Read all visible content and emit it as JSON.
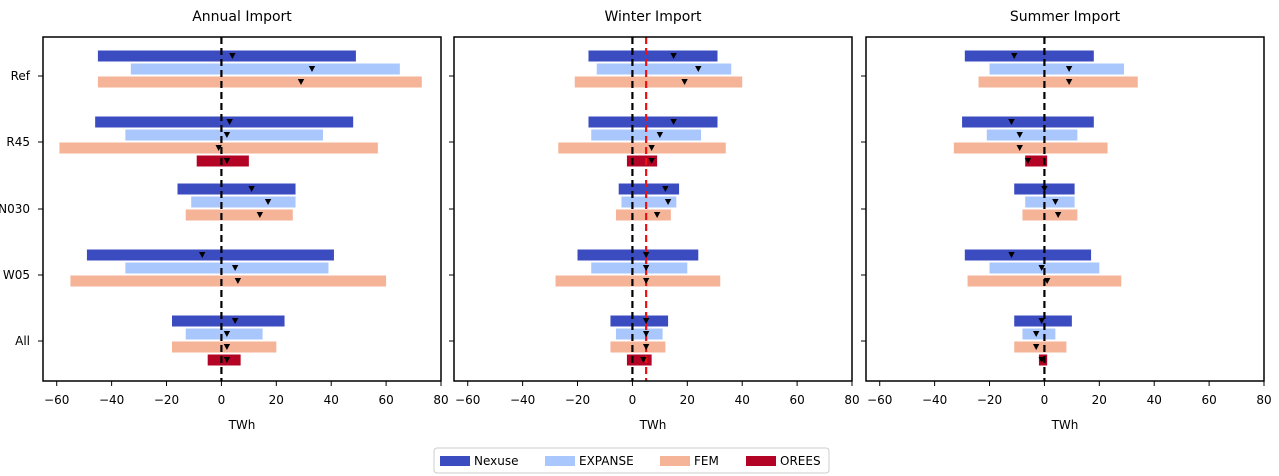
{
  "chart_data": {
    "type": "bar",
    "description": "Range bars (min-max) with median markers per scenario and model",
    "scenarios": [
      "Ref",
      "R45",
      "N030",
      "W05",
      "All"
    ],
    "models": [
      "Nexuse",
      "EXPANSE",
      "FEM",
      "OREES"
    ],
    "colors": {
      "Nexuse": "#3b4cc0",
      "EXPANSE": "#aac7fd",
      "FEM": "#f5b397",
      "OREES": "#b40426"
    },
    "xlabel": "TWh",
    "xlim": [
      -65,
      80
    ],
    "xticks": [
      -60,
      -40,
      -20,
      0,
      20,
      40,
      60,
      80
    ],
    "legend": [
      "Nexuse",
      "EXPANSE",
      "FEM",
      "OREES"
    ],
    "panels": [
      {
        "title": "Annual Import",
        "red_line": null,
        "series": [
          {
            "scenario": "Ref",
            "model": "Nexuse",
            "min": -45,
            "max": 49,
            "median": 4
          },
          {
            "scenario": "Ref",
            "model": "EXPANSE",
            "min": -33,
            "max": 65,
            "median": 33
          },
          {
            "scenario": "Ref",
            "model": "FEM",
            "min": -45,
            "max": 73,
            "median": 29
          },
          {
            "scenario": "R45",
            "model": "Nexuse",
            "min": -46,
            "max": 48,
            "median": 3
          },
          {
            "scenario": "R45",
            "model": "EXPANSE",
            "min": -35,
            "max": 37,
            "median": 2
          },
          {
            "scenario": "R45",
            "model": "FEM",
            "min": -59,
            "max": 57,
            "median": -1
          },
          {
            "scenario": "R45",
            "model": "OREES",
            "min": -9,
            "max": 10,
            "median": 2
          },
          {
            "scenario": "N030",
            "model": "Nexuse",
            "min": -16,
            "max": 27,
            "median": 11
          },
          {
            "scenario": "N030",
            "model": "EXPANSE",
            "min": -11,
            "max": 27,
            "median": 17
          },
          {
            "scenario": "N030",
            "model": "FEM",
            "min": -13,
            "max": 26,
            "median": 14
          },
          {
            "scenario": "W05",
            "model": "Nexuse",
            "min": -49,
            "max": 41,
            "median": -7
          },
          {
            "scenario": "W05",
            "model": "EXPANSE",
            "min": -35,
            "max": 39,
            "median": 5
          },
          {
            "scenario": "W05",
            "model": "FEM",
            "min": -55,
            "max": 60,
            "median": 6
          },
          {
            "scenario": "All",
            "model": "Nexuse",
            "min": -18,
            "max": 23,
            "median": 5
          },
          {
            "scenario": "All",
            "model": "EXPANSE",
            "min": -13,
            "max": 15,
            "median": 2
          },
          {
            "scenario": "All",
            "model": "FEM",
            "min": -18,
            "max": 20,
            "median": 2
          },
          {
            "scenario": "All",
            "model": "OREES",
            "min": -5,
            "max": 7,
            "median": 2
          }
        ]
      },
      {
        "title": "Winter Import",
        "red_line": 5,
        "series": [
          {
            "scenario": "Ref",
            "model": "Nexuse",
            "min": -16,
            "max": 31,
            "median": 15
          },
          {
            "scenario": "Ref",
            "model": "EXPANSE",
            "min": -13,
            "max": 36,
            "median": 24
          },
          {
            "scenario": "Ref",
            "model": "FEM",
            "min": -21,
            "max": 40,
            "median": 19
          },
          {
            "scenario": "R45",
            "model": "Nexuse",
            "min": -16,
            "max": 31,
            "median": 15
          },
          {
            "scenario": "R45",
            "model": "EXPANSE",
            "min": -15,
            "max": 25,
            "median": 10
          },
          {
            "scenario": "R45",
            "model": "FEM",
            "min": -27,
            "max": 34,
            "median": 7
          },
          {
            "scenario": "R45",
            "model": "OREES",
            "min": -2,
            "max": 9,
            "median": 7
          },
          {
            "scenario": "N030",
            "model": "Nexuse",
            "min": -5,
            "max": 17,
            "median": 12
          },
          {
            "scenario": "N030",
            "model": "EXPANSE",
            "min": -4,
            "max": 16,
            "median": 13
          },
          {
            "scenario": "N030",
            "model": "FEM",
            "min": -6,
            "max": 14,
            "median": 9
          },
          {
            "scenario": "W05",
            "model": "Nexuse",
            "min": -20,
            "max": 24,
            "median": 5
          },
          {
            "scenario": "W05",
            "model": "EXPANSE",
            "min": -15,
            "max": 20,
            "median": 5
          },
          {
            "scenario": "W05",
            "model": "FEM",
            "min": -28,
            "max": 32,
            "median": 5
          },
          {
            "scenario": "All",
            "model": "Nexuse",
            "min": -8,
            "max": 13,
            "median": 5
          },
          {
            "scenario": "All",
            "model": "EXPANSE",
            "min": -6,
            "max": 11,
            "median": 5
          },
          {
            "scenario": "All",
            "model": "FEM",
            "min": -8,
            "max": 12,
            "median": 5
          },
          {
            "scenario": "All",
            "model": "OREES",
            "min": -2,
            "max": 7,
            "median": 4
          }
        ]
      },
      {
        "title": "Summer Import",
        "red_line": null,
        "series": [
          {
            "scenario": "Ref",
            "model": "Nexuse",
            "min": -29,
            "max": 18,
            "median": -11
          },
          {
            "scenario": "Ref",
            "model": "EXPANSE",
            "min": -20,
            "max": 29,
            "median": 9
          },
          {
            "scenario": "Ref",
            "model": "FEM",
            "min": -24,
            "max": 34,
            "median": 9
          },
          {
            "scenario": "R45",
            "model": "Nexuse",
            "min": -30,
            "max": 18,
            "median": -12
          },
          {
            "scenario": "R45",
            "model": "EXPANSE",
            "min": -21,
            "max": 12,
            "median": -9
          },
          {
            "scenario": "R45",
            "model": "FEM",
            "min": -33,
            "max": 23,
            "median": -9
          },
          {
            "scenario": "R45",
            "model": "OREES",
            "min": -7,
            "max": 1,
            "median": -6
          },
          {
            "scenario": "N030",
            "model": "Nexuse",
            "min": -11,
            "max": 11,
            "median": 0
          },
          {
            "scenario": "N030",
            "model": "EXPANSE",
            "min": -7,
            "max": 11,
            "median": 4
          },
          {
            "scenario": "N030",
            "model": "FEM",
            "min": -8,
            "max": 12,
            "median": 5
          },
          {
            "scenario": "W05",
            "model": "Nexuse",
            "min": -29,
            "max": 17,
            "median": -12
          },
          {
            "scenario": "W05",
            "model": "EXPANSE",
            "min": -20,
            "max": 20,
            "median": -1
          },
          {
            "scenario": "W05",
            "model": "FEM",
            "min": -28,
            "max": 28,
            "median": 1
          },
          {
            "scenario": "All",
            "model": "Nexuse",
            "min": -11,
            "max": 10,
            "median": -1
          },
          {
            "scenario": "All",
            "model": "EXPANSE",
            "min": -8,
            "max": 4,
            "median": -3
          },
          {
            "scenario": "All",
            "model": "FEM",
            "min": -11,
            "max": 8,
            "median": -3
          },
          {
            "scenario": "All",
            "model": "OREES",
            "min": -2,
            "max": 1,
            "median": -1
          }
        ]
      }
    ]
  }
}
